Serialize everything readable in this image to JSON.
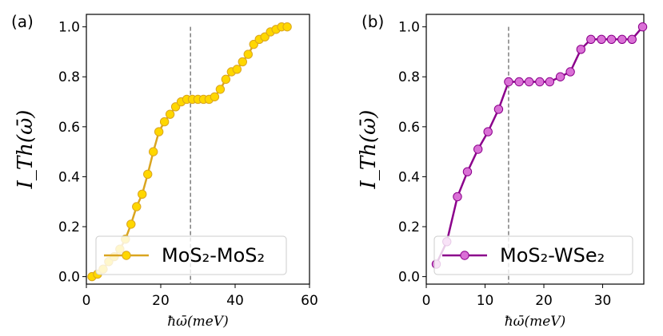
{
  "chart_data": [
    {
      "panel": "(a)",
      "type": "line",
      "xlabel": "ħω̄(meV)",
      "ylabel": "I_Th(ω̄)",
      "xlim": [
        0,
        60
      ],
      "ylim": [
        -0.03,
        1.05
      ],
      "xticks": [
        "0",
        "20",
        "40",
        "60"
      ],
      "yticks": [
        "0.0",
        "0.2",
        "0.4",
        "0.6",
        "0.8",
        "1.0"
      ],
      "vline": 28,
      "color": "#ffd700",
      "line_color": "#daa520",
      "legend": {
        "label": "MoS₂-MoS₂",
        "position": "lower right"
      },
      "series": [
        {
          "name": "MoS₂-MoS₂",
          "x": [
            1.5,
            3,
            4.5,
            6,
            7.5,
            9,
            10.5,
            12,
            13.5,
            15,
            16.5,
            18,
            19.5,
            21,
            22.5,
            24,
            25.5,
            27,
            28.5,
            30,
            31.5,
            33,
            34.5,
            36,
            37.5,
            39,
            40.5,
            42,
            43.5,
            45,
            46.5,
            48,
            49.5,
            51,
            52.5,
            54
          ],
          "y": [
            0.0,
            0.01,
            0.03,
            0.06,
            0.08,
            0.11,
            0.15,
            0.21,
            0.28,
            0.33,
            0.41,
            0.5,
            0.58,
            0.62,
            0.65,
            0.68,
            0.7,
            0.71,
            0.71,
            0.71,
            0.71,
            0.71,
            0.72,
            0.75,
            0.79,
            0.82,
            0.83,
            0.86,
            0.89,
            0.93,
            0.95,
            0.96,
            0.98,
            0.99,
            1.0,
            1.0
          ]
        }
      ]
    },
    {
      "panel": "(b)",
      "type": "line",
      "xlabel": "ħω̄(meV)",
      "ylabel": "I_Th(ω̄)",
      "xlim": [
        0,
        37
      ],
      "ylim": [
        -0.03,
        1.05
      ],
      "xticks": [
        "0",
        "10",
        "20",
        "30"
      ],
      "yticks": [
        "0.0",
        "0.2",
        "0.4",
        "0.6",
        "0.8",
        "1.0"
      ],
      "vline": 14,
      "color": "#da70d6",
      "line_color": "#8b008b",
      "legend": {
        "label": "MoS₂-WSe₂",
        "position": "lower right"
      },
      "series": [
        {
          "name": "MoS₂-WSe₂",
          "x": [
            1.7,
            3.5,
            5.3,
            7.0,
            8.8,
            10.5,
            12.3,
            14.0,
            15.8,
            17.5,
            19.3,
            21.0,
            22.8,
            24.5,
            26.3,
            28.0,
            29.8,
            31.5,
            33.3,
            35.0,
            36.8
          ],
          "y": [
            0.05,
            0.14,
            0.32,
            0.42,
            0.51,
            0.58,
            0.67,
            0.78,
            0.78,
            0.78,
            0.78,
            0.78,
            0.8,
            0.82,
            0.91,
            0.95,
            0.95,
            0.95,
            0.95,
            0.95,
            1.0
          ]
        }
      ]
    }
  ]
}
